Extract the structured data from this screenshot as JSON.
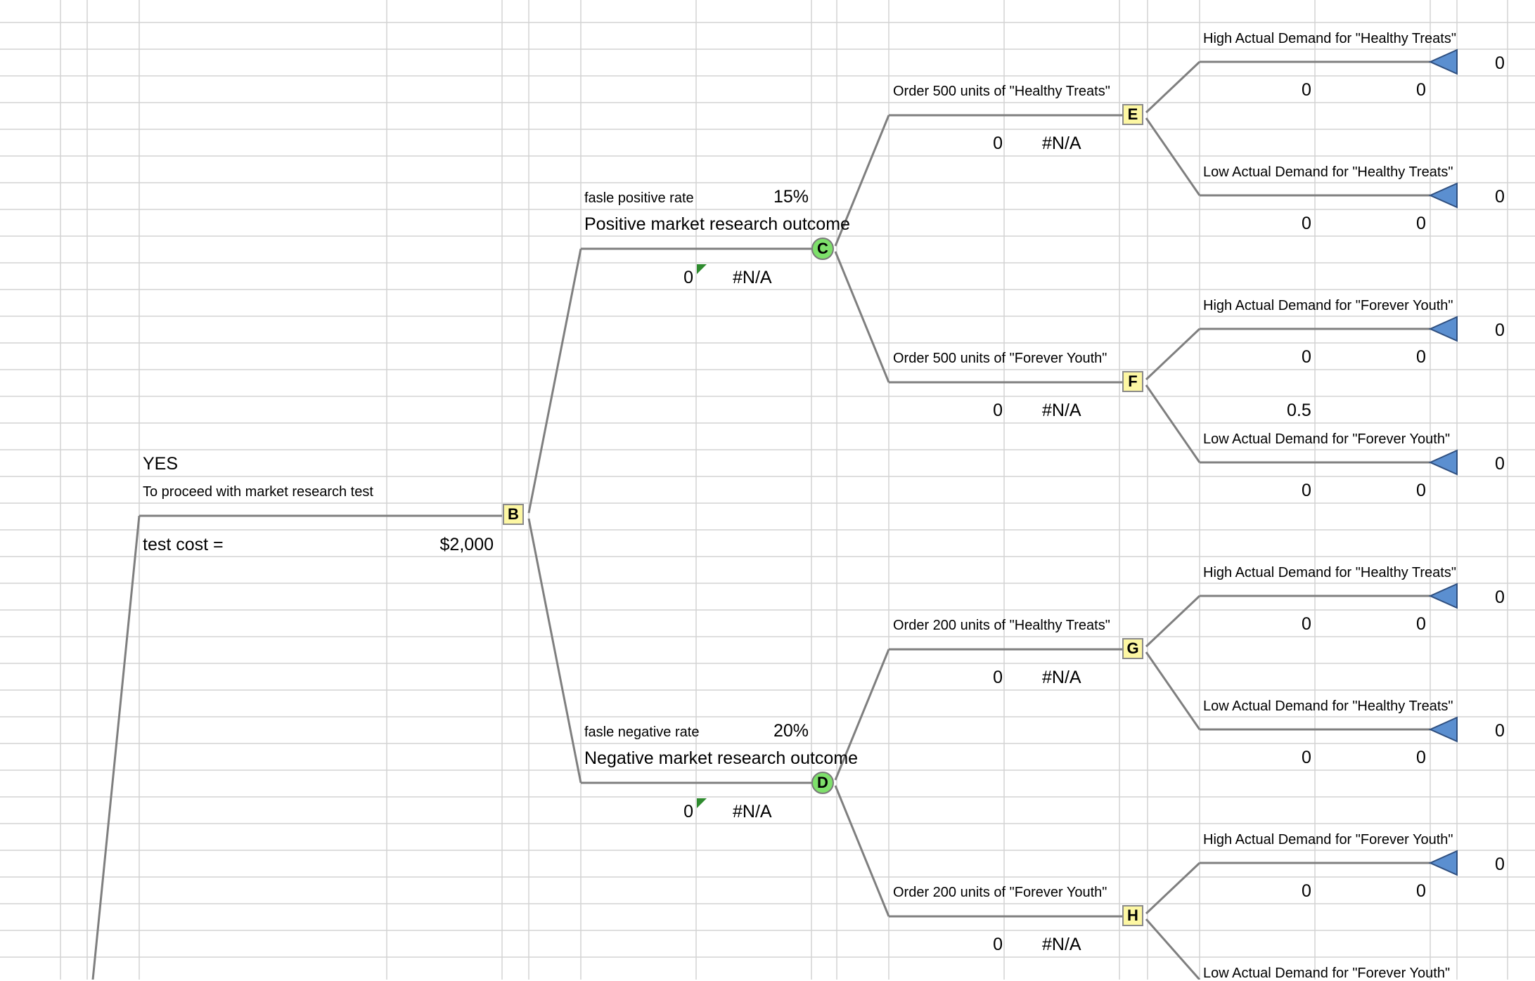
{
  "root": {
    "branch_label": "YES",
    "branch_desc": "To proceed with market research test",
    "cost_label": "test cost =",
    "cost_value": "$2,000"
  },
  "nodes": {
    "B": "B",
    "C": "C",
    "D": "D",
    "E": "E",
    "F": "F",
    "G": "G",
    "H": "H"
  },
  "chance": {
    "C": {
      "rate_label": "fasle positive rate",
      "rate_value": "15%",
      "outcome": "Positive market research outcome",
      "value": "0",
      "ev": "#N/A"
    },
    "D": {
      "rate_label": "fasle negative rate",
      "rate_value": "20%",
      "outcome": "Negative market research outcome",
      "value": "0",
      "ev": "#N/A"
    }
  },
  "decisions": {
    "E": {
      "label": "Order 500 units of \"Healthy Treats\"",
      "value": "0",
      "ev": "#N/A"
    },
    "F": {
      "label": "Order 500 units of \"Forever Youth\"",
      "value": "0",
      "ev": "#N/A"
    },
    "G": {
      "label": "Order 200 units of \"Healthy Treats\"",
      "value": "0",
      "ev": "#N/A"
    },
    "H": {
      "label": "Order 200 units of \"Forever Youth\"",
      "value": "0",
      "ev": "#N/A"
    }
  },
  "leaves": [
    {
      "label": "High Actual Demand for \"Healthy Treats\"",
      "v1": "0",
      "v2": "0",
      "payoff": "0"
    },
    {
      "label": "Low Actual Demand for \"Healthy Treats\"",
      "v1": "0",
      "v2": "0",
      "payoff": "0"
    },
    {
      "label": "High Actual Demand for \"Forever Youth\"",
      "v1": "0",
      "v2": "0",
      "payoff": "0"
    },
    {
      "label": "Low Actual Demand for \"Forever Youth\"",
      "v1": "0",
      "v2": "0",
      "payoff": "0"
    },
    {
      "label": "High Actual Demand for \"Healthy Treats\"",
      "v1": "0",
      "v2": "0",
      "payoff": "0"
    },
    {
      "label": "Low Actual Demand for \"Healthy Treats\"",
      "v1": "0",
      "v2": "0",
      "payoff": "0"
    },
    {
      "label": "High Actual Demand for \"Forever Youth\"",
      "v1": "0",
      "v2": "0",
      "payoff": "0"
    },
    {
      "label": "Low Actual Demand for \"Forever Youth\""
    }
  ],
  "misc": {
    "prob_note": "0.5"
  },
  "colors": {
    "line": "#7f7f7f",
    "grid": "#d4d4d4",
    "decision_node": "#fdf7a3",
    "chance_node": "#7ee06b",
    "terminal": "#5b8fd0",
    "comment_flag": "#2e8b2e"
  }
}
